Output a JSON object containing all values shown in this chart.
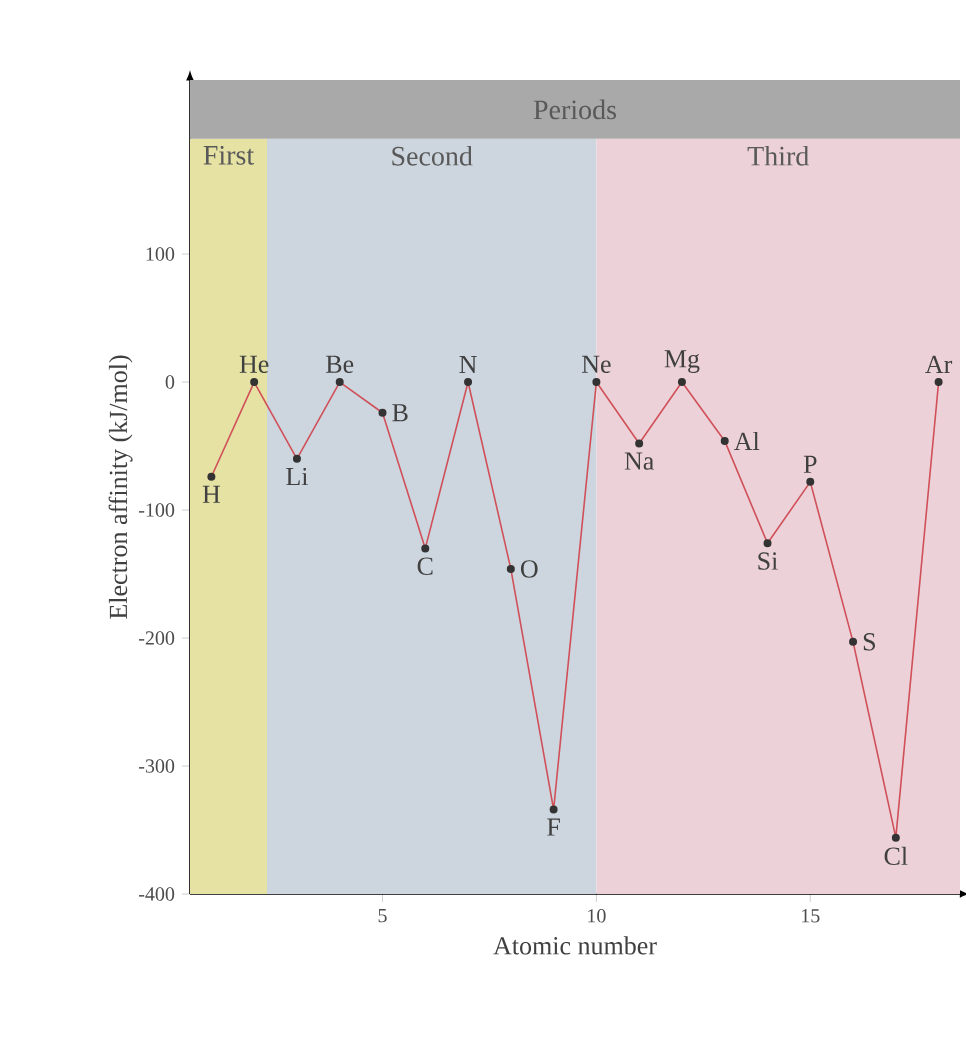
{
  "chart_data": {
    "type": "line",
    "xlabel": "Atomic number",
    "ylabel": "Electron affinity (kJ/mol)",
    "x": [
      1,
      2,
      3,
      4,
      5,
      6,
      7,
      8,
      9,
      10,
      11,
      12,
      13,
      14,
      15,
      16,
      17,
      18
    ],
    "series": [
      {
        "color": "#d0505a",
        "values": [
          -74,
          0,
          -60,
          0,
          -24,
          -130,
          0,
          -146,
          -334,
          0,
          -48,
          0,
          -46,
          -126,
          -78,
          -203,
          -356,
          0
        ]
      }
    ],
    "marker": "circle",
    "xlim": [
      0.5,
      18.5
    ],
    "ylim": [
      -400,
      236
    ],
    "xticks": [
      5,
      10,
      15
    ],
    "yticks": [
      -400,
      -300,
      -200,
      -100,
      0,
      100
    ],
    "bands": [
      {
        "axis": "x",
        "from": 0.5,
        "to": 2.3,
        "label": "First",
        "color": "#e6e2a4"
      },
      {
        "axis": "x",
        "from": 2.3,
        "to": 10,
        "label": "Second",
        "color": "#cdd6de"
      },
      {
        "axis": "x",
        "from": 10,
        "to": 18.5,
        "label": "Third",
        "color": "#ecd2d8"
      },
      {
        "axis": "y",
        "from": 190,
        "to": 236,
        "label": "Periods",
        "color": "#a9a9a9"
      }
    ],
    "annotations": [
      {
        "text": "H",
        "x": 1,
        "y": -74
      },
      {
        "text": "He",
        "x": 2,
        "y": 0
      },
      {
        "text": "Li",
        "x": 3,
        "y": -60
      },
      {
        "text": "Be",
        "x": 4,
        "y": 0
      },
      {
        "text": "B",
        "x": 5,
        "y": -24
      },
      {
        "text": "C",
        "x": 6,
        "y": -130
      },
      {
        "text": "N",
        "x": 7,
        "y": 0
      },
      {
        "text": "O",
        "x": 8,
        "y": -146
      },
      {
        "text": "F",
        "x": 9,
        "y": -334
      },
      {
        "text": "Ne",
        "x": 10,
        "y": 0
      },
      {
        "text": "Na",
        "x": 11,
        "y": -48
      },
      {
        "text": "Mg",
        "x": 12,
        "y": 0
      },
      {
        "text": "Al",
        "x": 13,
        "y": -46
      },
      {
        "text": "Si",
        "x": 14,
        "y": -126
      },
      {
        "text": "P",
        "x": 15,
        "y": -78
      },
      {
        "text": "S",
        "x": 16,
        "y": -203
      },
      {
        "text": "Cl",
        "x": 17,
        "y": -356
      },
      {
        "text": "Ar",
        "x": 18,
        "y": 0
      }
    ]
  }
}
